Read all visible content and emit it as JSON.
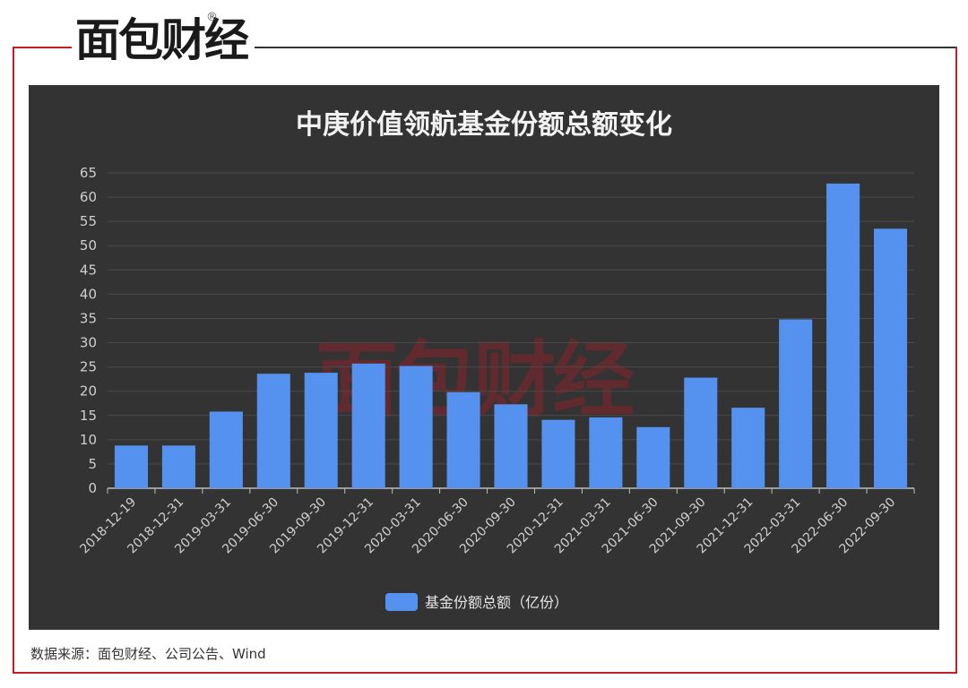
{
  "brand": {
    "logo_text": "面包财经",
    "registered_mark": "®"
  },
  "source": "数据来源：面包财经、公司公告、Wind",
  "colors": {
    "panel_bg": "#333333",
    "bar": "#5591ef",
    "accent": "#c21f2b"
  },
  "chart_data": {
    "type": "bar",
    "title": "中庚价值领航基金份额总额变化",
    "categories": [
      "2018-12-19",
      "2018-12-31",
      "2019-03-31",
      "2019-06-30",
      "2019-09-30",
      "2019-12-31",
      "2020-03-31",
      "2020-06-30",
      "2020-09-30",
      "2020-12-31",
      "2021-03-31",
      "2021-06-30",
      "2021-09-30",
      "2021-12-31",
      "2022-03-31",
      "2022-06-30",
      "2022-09-30"
    ],
    "series": [
      {
        "name": "基金份额总额（亿份）",
        "values": [
          8.8,
          8.8,
          15.8,
          23.6,
          23.8,
          25.7,
          25.2,
          19.8,
          17.3,
          14.1,
          14.6,
          12.6,
          22.8,
          16.6,
          34.8,
          62.8,
          53.5
        ]
      }
    ],
    "ylim": [
      0,
      65
    ],
    "yticks": [
      0,
      5,
      10,
      15,
      20,
      25,
      30,
      35,
      40,
      45,
      50,
      55,
      60,
      65
    ],
    "grid": true,
    "legend": "bottom-center"
  }
}
